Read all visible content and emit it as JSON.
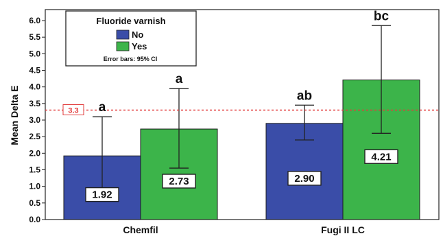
{
  "colors": {
    "no": "#3a4da8",
    "yes": "#3cb44a",
    "reference": "#e23b3b",
    "axis": "#222222"
  },
  "chart_data": {
    "type": "bar",
    "ylabel": "Mean Delta E",
    "ylim": [
      0,
      6.0
    ],
    "yticks": [
      "0.0",
      "0.5",
      "1.0",
      "1.5",
      "2.0",
      "2.5",
      "3.0",
      "3.5",
      "4.0",
      "4.5",
      "5.0",
      "5.5",
      "6.0"
    ],
    "categories": [
      "Chemfil",
      "Fugi II LC"
    ],
    "series": [
      {
        "name": "No",
        "values": [
          1.92,
          2.9
        ],
        "labels": [
          "1.92",
          "2.90"
        ],
        "ci_low": [
          0.7,
          2.4
        ],
        "ci_high": [
          3.1,
          3.45
        ]
      },
      {
        "name": "Yes",
        "values": [
          2.73,
          4.21
        ],
        "labels": [
          "2.73",
          "4.21"
        ],
        "ci_low": [
          1.55,
          2.6
        ],
        "ci_high": [
          3.95,
          5.85
        ]
      }
    ],
    "significance_labels": [
      [
        "a",
        "ab"
      ],
      [
        "a",
        "bc"
      ]
    ],
    "reference_line": {
      "value": 3.3,
      "label": "3.3"
    },
    "legend": {
      "title": "Fluoride varnish",
      "items": [
        "No",
        "Yes"
      ],
      "note": "Error bars: 95% CI",
      "position": "top-left"
    },
    "grid": false
  }
}
